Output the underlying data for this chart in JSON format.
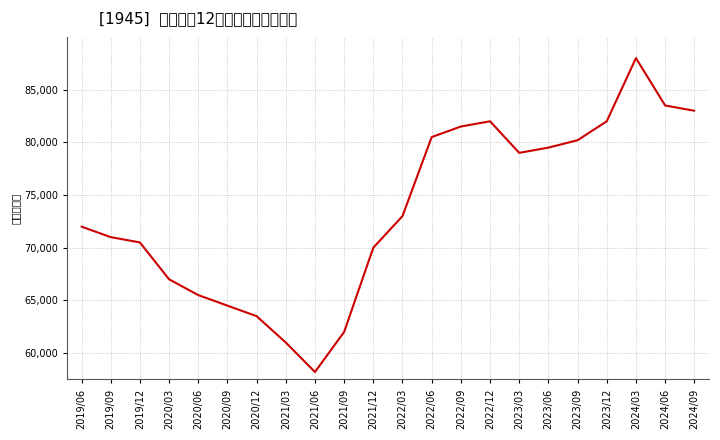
{
  "title": "[1945]  売上高の12か月移動合計の推移",
  "ylabel": "（百万円）",
  "line_color": "#cc0000",
  "bg_color": "#ffffff",
  "plot_bg_color": "#ffffff",
  "grid_color": "#aaaaaa",
  "dates": [
    "2019/06",
    "2019/09",
    "2019/12",
    "2020/03",
    "2020/06",
    "2020/09",
    "2020/12",
    "2021/03",
    "2021/06",
    "2021/09",
    "2021/12",
    "2022/03",
    "2022/06",
    "2022/09",
    "2022/12",
    "2023/03",
    "2023/06",
    "2023/09",
    "2023/12",
    "2024/03",
    "2024/06",
    "2024/09"
  ],
  "values": [
    72000,
    71000,
    70500,
    67000,
    65500,
    64500,
    63500,
    61000,
    58200,
    62000,
    70000,
    73000,
    80500,
    81500,
    82000,
    79000,
    79500,
    80200,
    82000,
    88000,
    83500,
    83000
  ],
  "yticks": [
    60000,
    65000,
    70000,
    75000,
    80000,
    85000
  ],
  "ylim": [
    57500,
    90000
  ],
  "title_fontsize": 11,
  "tick_fontsize": 7,
  "ylabel_fontsize": 7.5
}
